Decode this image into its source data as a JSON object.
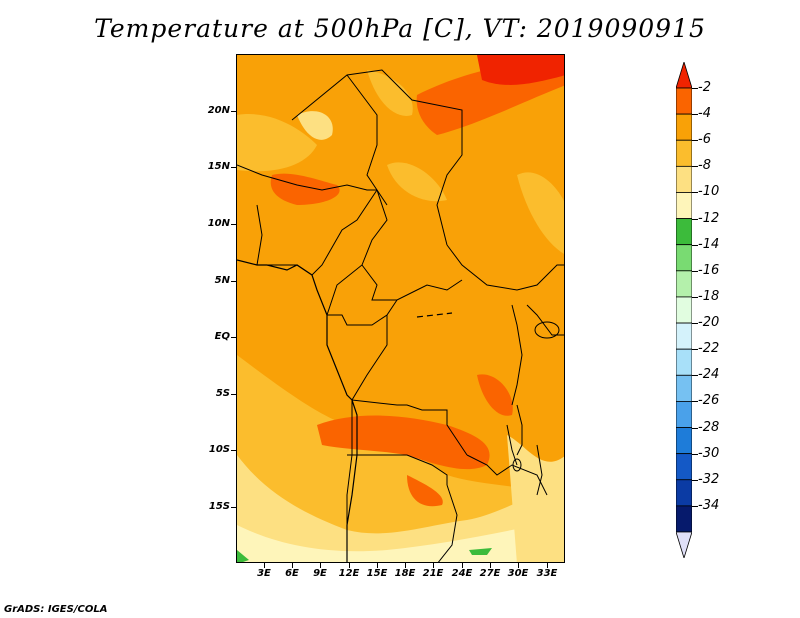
{
  "title": "Temperature at 500hPa [C], VT: 2019090915",
  "credit": "GrADS: IGES/COLA",
  "y_axis": [
    "20N",
    "15N",
    "10N",
    "5N",
    "EQ",
    "5S",
    "10S",
    "15S"
  ],
  "x_axis": [
    "3E",
    "6E",
    "9E",
    "12E",
    "15E",
    "18E",
    "21E",
    "24E",
    "27E",
    "30E",
    "33E"
  ],
  "colorbar": {
    "labels": [
      "-2",
      "-4",
      "-6",
      "-8",
      "-10",
      "-12",
      "-14",
      "-16",
      "-18",
      "-20",
      "-22",
      "-24",
      "-26",
      "-28",
      "-30",
      "-32",
      "-34"
    ],
    "colors": [
      "#f02300",
      "#fa6400",
      "#f9a107",
      "#fbbd2d",
      "#fde082",
      "#fef5ba",
      "#3cbb3b",
      "#79db72",
      "#b4f0ab",
      "#e1fde0",
      "#d4f2fb",
      "#a8e0f9",
      "#76c1f2",
      "#4aa1ea",
      "#1e7cd9",
      "#1459c6",
      "#0b3ba4",
      "#061a6c",
      "#e0e0f8"
    ],
    "colors_note": "bottom triangle (below -34) shown in light lavender"
  },
  "map_colors": {
    "warmest": "#f02300",
    "warm": "#fa6400",
    "mid": "#f9a107",
    "cool": "#fbbd2d",
    "cooler": "#fde082",
    "coolest": "#fef5ba",
    "green": "#3cbb3b"
  }
}
